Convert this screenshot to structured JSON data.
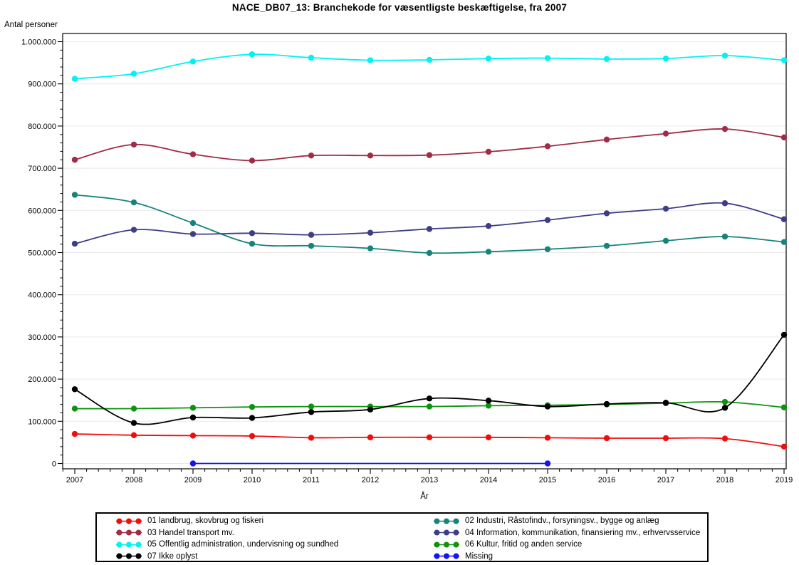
{
  "title": "NACE_DB07_13: Branchekode for væsentligste beskæftigelse, fra 2007",
  "y_axis": {
    "label": "Antal personer",
    "tick_labels": [
      "1.000.000",
      "900.000",
      "800.000",
      "700.000",
      "600.000",
      "500.000",
      "400.000",
      "300.000",
      "200.000",
      "100.000",
      "0"
    ],
    "tick_values": [
      1000000,
      900000,
      800000,
      700000,
      600000,
      500000,
      400000,
      300000,
      200000,
      100000,
      0
    ]
  },
  "x_axis": {
    "label": "År",
    "tick_labels": [
      "2007",
      "2008",
      "2009",
      "2010",
      "2011",
      "2012",
      "2013",
      "2014",
      "2015",
      "2016",
      "2017",
      "2018",
      "2019"
    ]
  },
  "chart_data": {
    "type": "line",
    "x": [
      2007,
      2008,
      2009,
      2010,
      2011,
      2012,
      2013,
      2014,
      2015,
      2016,
      2017,
      2018,
      2019
    ],
    "ylim": [
      0,
      1000000
    ],
    "grid": "horizontal-light-gray",
    "legend_position": "bottom",
    "marker": "filled-circle",
    "interpolation": "smooth-spline",
    "series": [
      {
        "key": "01",
        "name": "01 landbrug, skovbrug og fiskeri",
        "color": "#F20C0C",
        "values": [
          70000,
          67000,
          66000,
          65000,
          61000,
          62000,
          62000,
          62000,
          61000,
          60000,
          60000,
          59000,
          40000
        ]
      },
      {
        "key": "02",
        "name": "02 Industri, Råstofindv., forsyningsv., bygge og anlæg",
        "color": "#17837B",
        "values": [
          637000,
          619000,
          570000,
          521000,
          516000,
          510000,
          499000,
          502000,
          508000,
          516000,
          528000,
          538000,
          525000
        ]
      },
      {
        "key": "03",
        "name": "03 Handel transport mv.",
        "color": "#A02C45",
        "values": [
          720000,
          756000,
          733000,
          718000,
          730000,
          730000,
          731000,
          739000,
          752000,
          768000,
          782000,
          793000,
          773000
        ]
      },
      {
        "key": "04",
        "name": "04 Information, kommunikation, finansiering mv., erhvervsservice",
        "color": "#3E3E87",
        "values": [
          521000,
          554000,
          544000,
          546000,
          542000,
          547000,
          556000,
          563000,
          577000,
          593000,
          604000,
          617000,
          579000
        ]
      },
      {
        "key": "05",
        "name": "05 Offentlig administration, undervisning og sundhed",
        "color": "#00F2F2",
        "values": [
          912000,
          924000,
          953000,
          970000,
          962000,
          956000,
          957000,
          960000,
          961000,
          959000,
          960000,
          967000,
          956000
        ]
      },
      {
        "key": "06",
        "name": "06 Kultur, fritid og anden service",
        "color": "#0E930E",
        "values": [
          130000,
          130000,
          132000,
          134000,
          135000,
          135000,
          135000,
          137000,
          138000,
          140000,
          143000,
          146000,
          133000
        ]
      },
      {
        "key": "07",
        "name": "07 Ikke oplyst",
        "color": "#000000",
        "values": [
          176000,
          96000,
          109000,
          108000,
          122000,
          128000,
          154000,
          149000,
          135000,
          141000,
          144000,
          132000,
          305000
        ]
      },
      {
        "key": "missing",
        "name": "Missing",
        "color": "#1414F0",
        "x": [
          2009,
          2015
        ],
        "values": [
          0,
          0
        ]
      }
    ]
  },
  "legend": {
    "column_order_keys": [
      "01",
      "03",
      "05",
      "07",
      "02",
      "04",
      "06",
      "missing"
    ]
  }
}
